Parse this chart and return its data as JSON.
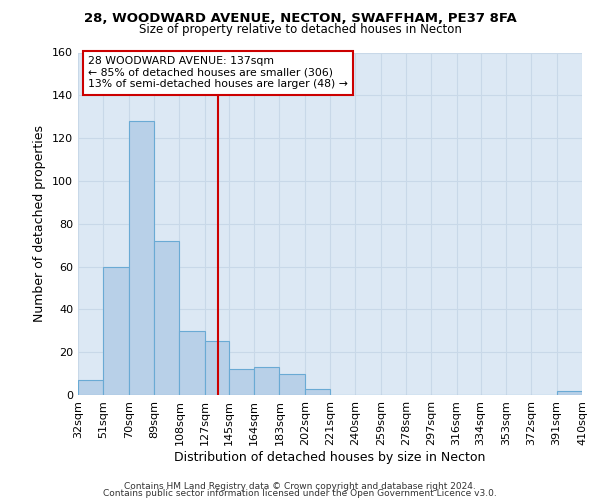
{
  "title": "28, WOODWARD AVENUE, NECTON, SWAFFHAM, PE37 8FA",
  "subtitle": "Size of property relative to detached houses in Necton",
  "xlabel": "Distribution of detached houses by size in Necton",
  "ylabel": "Number of detached properties",
  "bar_values": [
    7,
    60,
    128,
    72,
    30,
    25,
    12,
    13,
    10,
    3,
    0,
    0,
    0,
    0,
    0,
    0,
    0,
    0,
    0,
    2
  ],
  "bin_labels": [
    "32sqm",
    "51sqm",
    "70sqm",
    "89sqm",
    "108sqm",
    "127sqm",
    "145sqm",
    "164sqm",
    "183sqm",
    "202sqm",
    "221sqm",
    "240sqm",
    "259sqm",
    "278sqm",
    "297sqm",
    "316sqm",
    "334sqm",
    "353sqm",
    "372sqm",
    "391sqm",
    "410sqm"
  ],
  "bin_edges": [
    32,
    51,
    70,
    89,
    108,
    127,
    145,
    164,
    183,
    202,
    221,
    240,
    259,
    278,
    297,
    316,
    334,
    353,
    372,
    391,
    410
  ],
  "ylim": [
    0,
    160
  ],
  "yticks": [
    0,
    20,
    40,
    60,
    80,
    100,
    120,
    140,
    160
  ],
  "vline_x": 137,
  "bar_color": "#b8d0e8",
  "bar_edge_color": "#6aaad4",
  "vline_color": "#cc0000",
  "grid_color": "#c8d8e8",
  "plot_bg_color": "#dce8f4",
  "fig_bg_color": "#ffffff",
  "annotation_box_bg": "#ffffff",
  "annotation_box_edge": "#cc0000",
  "annotation_line1": "28 WOODWARD AVENUE: 137sqm",
  "annotation_line2": "← 85% of detached houses are smaller (306)",
  "annotation_line3": "13% of semi-detached houses are larger (48) →",
  "footnote1": "Contains HM Land Registry data © Crown copyright and database right 2024.",
  "footnote2": "Contains public sector information licensed under the Open Government Licence v3.0."
}
